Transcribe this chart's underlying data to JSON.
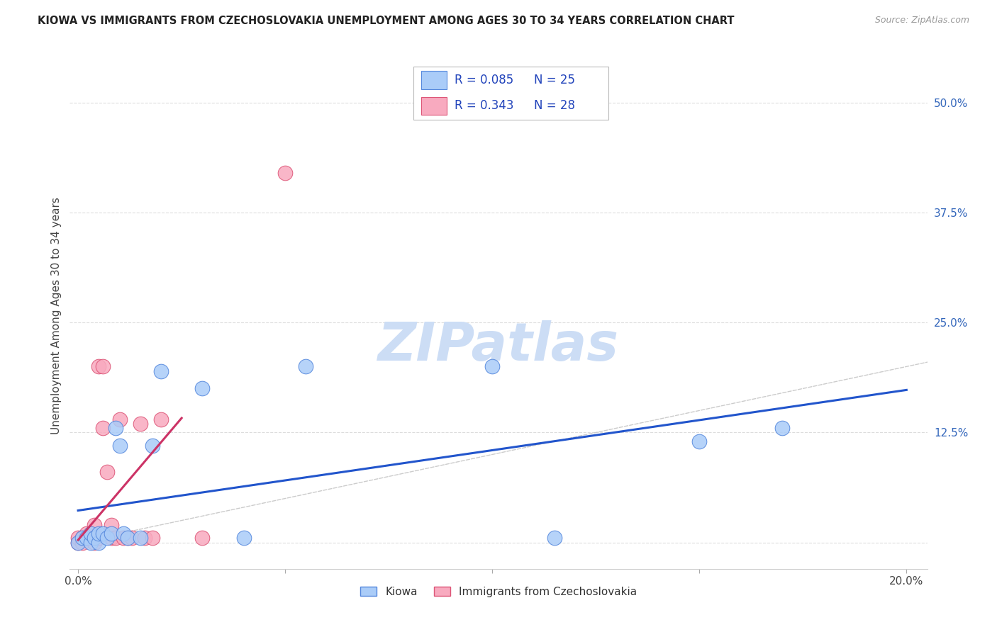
{
  "title": "KIOWA VS IMMIGRANTS FROM CZECHOSLOVAKIA UNEMPLOYMENT AMONG AGES 30 TO 34 YEARS CORRELATION CHART",
  "source": "Source: ZipAtlas.com",
  "ylabel": "Unemployment Among Ages 30 to 34 years",
  "xlim": [
    -0.002,
    0.205
  ],
  "ylim": [
    -0.03,
    0.545
  ],
  "xtick_positions": [
    0.0,
    0.05,
    0.1,
    0.15,
    0.2
  ],
  "xtick_labels": [
    "0.0%",
    "",
    "",
    "",
    "20.0%"
  ],
  "ytick_positions": [
    0.0,
    0.125,
    0.25,
    0.375,
    0.5
  ],
  "ytick_labels": [
    "",
    "12.5%",
    "25.0%",
    "37.5%",
    "50.0%"
  ],
  "kiowa_color": "#aaccf8",
  "czech_color": "#f8aabf",
  "kiowa_edge": "#5588dd",
  "czech_edge": "#dd5577",
  "trend_blue": "#2255cc",
  "trend_pink": "#cc3366",
  "ref_line_color": "#cccccc",
  "legend_r1": "R = 0.085",
  "legend_n1": "N = 25",
  "legend_r2": "R = 0.343",
  "legend_n2": "N = 28",
  "legend_text_color": "#2244bb",
  "watermark_color": "#ccddf5",
  "kiowa_x": [
    0.0,
    0.001,
    0.002,
    0.003,
    0.003,
    0.004,
    0.005,
    0.005,
    0.006,
    0.007,
    0.008,
    0.009,
    0.01,
    0.011,
    0.012,
    0.015,
    0.018,
    0.02,
    0.03,
    0.04,
    0.055,
    0.1,
    0.115,
    0.15,
    0.17
  ],
  "kiowa_y": [
    0.0,
    0.005,
    0.005,
    0.0,
    0.01,
    0.005,
    0.0,
    0.01,
    0.01,
    0.005,
    0.01,
    0.13,
    0.11,
    0.01,
    0.005,
    0.005,
    0.11,
    0.195,
    0.175,
    0.005,
    0.2,
    0.2,
    0.005,
    0.115,
    0.13
  ],
  "czech_x": [
    0.0,
    0.0,
    0.001,
    0.001,
    0.002,
    0.002,
    0.003,
    0.003,
    0.004,
    0.004,
    0.005,
    0.005,
    0.006,
    0.006,
    0.007,
    0.008,
    0.008,
    0.009,
    0.01,
    0.011,
    0.012,
    0.013,
    0.015,
    0.016,
    0.018,
    0.02,
    0.03,
    0.05
  ],
  "czech_y": [
    0.0,
    0.005,
    0.0,
    0.005,
    0.005,
    0.01,
    0.005,
    0.01,
    0.0,
    0.02,
    0.005,
    0.2,
    0.2,
    0.13,
    0.08,
    0.005,
    0.02,
    0.005,
    0.14,
    0.005,
    0.005,
    0.005,
    0.135,
    0.005,
    0.005,
    0.14,
    0.005,
    0.42
  ]
}
